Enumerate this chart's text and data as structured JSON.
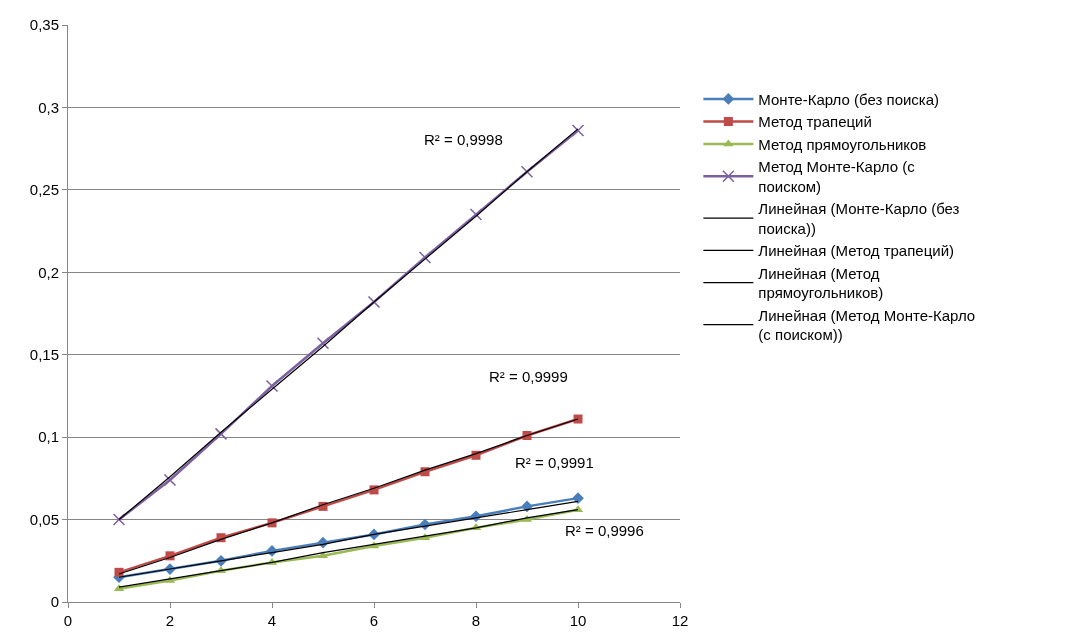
{
  "chart_data": {
    "type": "line",
    "x": [
      1,
      2,
      3,
      4,
      5,
      6,
      7,
      8,
      9,
      10
    ],
    "series": [
      {
        "name": "Монте-Карло (без поиска)",
        "color": "#4a7ebb",
        "marker": "diamond",
        "values": [
          0.015,
          0.02,
          0.025,
          0.031,
          0.036,
          0.041,
          0.047,
          0.052,
          0.058,
          0.063
        ]
      },
      {
        "name": "Метод трапеций",
        "color": "#be4b48",
        "marker": "square",
        "values": [
          0.018,
          0.028,
          0.039,
          0.048,
          0.058,
          0.068,
          0.079,
          0.089,
          0.101,
          0.111
        ]
      },
      {
        "name": "Метод прямоугольников",
        "color": "#98b954",
        "marker": "triangle",
        "values": [
          0.008,
          0.013,
          0.019,
          0.024,
          0.028,
          0.034,
          0.039,
          0.045,
          0.05,
          0.056
        ]
      },
      {
        "name": "Метод Монте-Карло (с поиском)",
        "color": "#7d60a0",
        "marker": "cross",
        "values": [
          0.05,
          0.074,
          0.102,
          0.131,
          0.157,
          0.182,
          0.209,
          0.235,
          0.261,
          0.286
        ]
      },
      {
        "name": "Линейная (Монте-Карло (без поиска))",
        "color": "#000000",
        "marker": "none",
        "values": [
          0.015,
          0.02,
          0.025,
          0.03,
          0.035,
          0.041,
          0.046,
          0.051,
          0.056,
          0.061
        ]
      },
      {
        "name": "Линейная (Метод трапеций)",
        "color": "#000000",
        "marker": "none",
        "values": [
          0.017,
          0.027,
          0.038,
          0.048,
          0.059,
          0.069,
          0.08,
          0.09,
          0.101,
          0.111
        ]
      },
      {
        "name": "Линейная (Метод прямоугольников)",
        "color": "#000000",
        "marker": "none",
        "values": [
          0.009,
          0.014,
          0.019,
          0.024,
          0.03,
          0.035,
          0.04,
          0.045,
          0.051,
          0.056
        ]
      },
      {
        "name": "Линейная (Метод Монте-Карло (с поиском))",
        "color": "#000000",
        "marker": "none",
        "values": [
          0.05,
          0.076,
          0.103,
          0.129,
          0.155,
          0.182,
          0.208,
          0.234,
          0.261,
          0.287
        ]
      }
    ],
    "annotations": [
      "R² = 0,9998",
      "R² = 0,9999",
      "R² = 0,9991",
      "R² = 0,9996"
    ],
    "xlim": [
      0,
      12
    ],
    "xticks": [
      0,
      2,
      4,
      6,
      8,
      10,
      12
    ],
    "ylim": [
      0,
      0.35
    ],
    "yticks": [
      0,
      {
        "value": 0.05,
        "label": "0,05"
      },
      {
        "value": 0.1,
        "label": "0,1"
      },
      {
        "value": 0.15,
        "label": "0,15"
      },
      {
        "value": 0.2,
        "label": "0,2"
      },
      {
        "value": 0.25,
        "label": "0,25"
      },
      {
        "value": 0.3,
        "label": "0,3"
      },
      {
        "value": 0.35,
        "label": "0,35"
      }
    ],
    "grid": "y",
    "legend": "right",
    "line_style": "solid"
  }
}
